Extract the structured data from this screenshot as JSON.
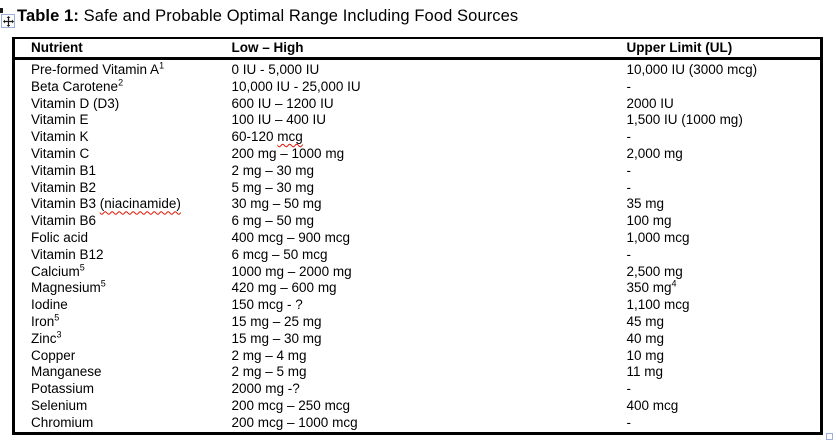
{
  "title": {
    "label": "Table 1:",
    "text": " Safe and Probable Optimal Range Including Food Sources"
  },
  "colors": {
    "text": "#000000",
    "table_border": "#000000",
    "handle_border": "#9cb0d8",
    "spellcheck_squiggle": "#dd1100"
  },
  "icons": {
    "move_handle": "four-way-move-arrow",
    "resize_handle": "open-square-resize"
  },
  "table": {
    "headers": [
      "Nutrient",
      "Low – High",
      "Upper Limit (UL)"
    ],
    "rows": [
      {
        "nutrient": "Pre-formed Vitamin A",
        "nutrient_sup": "1",
        "low": "0 IU - 5,000 IU",
        "upper": "10,000 IU (3000 mcg)"
      },
      {
        "nutrient": "Beta Carotene",
        "nutrient_sup": "2",
        "low": "10,000 IU - 25,000 IU",
        "upper": "-"
      },
      {
        "nutrient": "Vitamin D (D3)",
        "low": "600 IU – 1200 IU",
        "upper": "2000 IU"
      },
      {
        "nutrient": "Vitamin E",
        "low": "100 IU – 400 IU",
        "upper": "1,500 IU (1000 mg)"
      },
      {
        "nutrient": "Vitamin K",
        "low": "60-120 ",
        "low_mis": "mcg",
        "upper": "-"
      },
      {
        "nutrient": "Vitamin C",
        "low": "200 mg – 1000 mg",
        "upper": "2,000 mg"
      },
      {
        "nutrient": "Vitamin B1",
        "low": "2 mg – 30 mg",
        "upper": "-"
      },
      {
        "nutrient": "Vitamin B2",
        "low": "5 mg – 30 mg",
        "upper": "-"
      },
      {
        "nutrient": "Vitamin B3 ",
        "nutrient_mis": "(niacinamide)",
        "low": "30 mg – 50 mg",
        "upper": "35 mg"
      },
      {
        "nutrient": "Vitamin B6",
        "low": "6 mg – 50 mg",
        "upper": "100 mg"
      },
      {
        "nutrient": "Folic acid",
        "low": "400 mcg – 900 mcg",
        "upper": "1,000 mcg"
      },
      {
        "nutrient": "Vitamin B12",
        "low": "6 mcg – 50 mcg",
        "upper": "-"
      },
      {
        "nutrient": "Calcium",
        "nutrient_sup": "5",
        "low": "1000 mg – 2000 mg",
        "upper": "2,500 mg"
      },
      {
        "nutrient": "Magnesium",
        "nutrient_sup": "5",
        "low": "420 mg – 600 mg",
        "upper": "350 mg",
        "upper_sup": "4"
      },
      {
        "nutrient": "Iodine",
        "low": "150 mcg - ?",
        "upper": "1,100 mcg"
      },
      {
        "nutrient": "Iron",
        "nutrient_sup": "5",
        "low": "15 mg – 25 mg",
        "upper": "45 mg"
      },
      {
        "nutrient": "Zinc",
        "nutrient_sup": "3",
        "low": "15 mg – 30 mg",
        "upper": "40 mg"
      },
      {
        "nutrient": "Copper",
        "low": "2 mg – 4 mg",
        "upper": "10 mg"
      },
      {
        "nutrient": "Manganese",
        "low": "2 mg – 5 mg",
        "upper": "11 mg"
      },
      {
        "nutrient": "Potassium",
        "low": "2000 mg -?",
        "upper": "-"
      },
      {
        "nutrient": "Selenium",
        "low": "200 mcg – 250 mcg",
        "upper": "400 mcg"
      },
      {
        "nutrient": "Chromium",
        "low": "200 mcg – 1000 mcg",
        "upper": "-"
      }
    ]
  }
}
